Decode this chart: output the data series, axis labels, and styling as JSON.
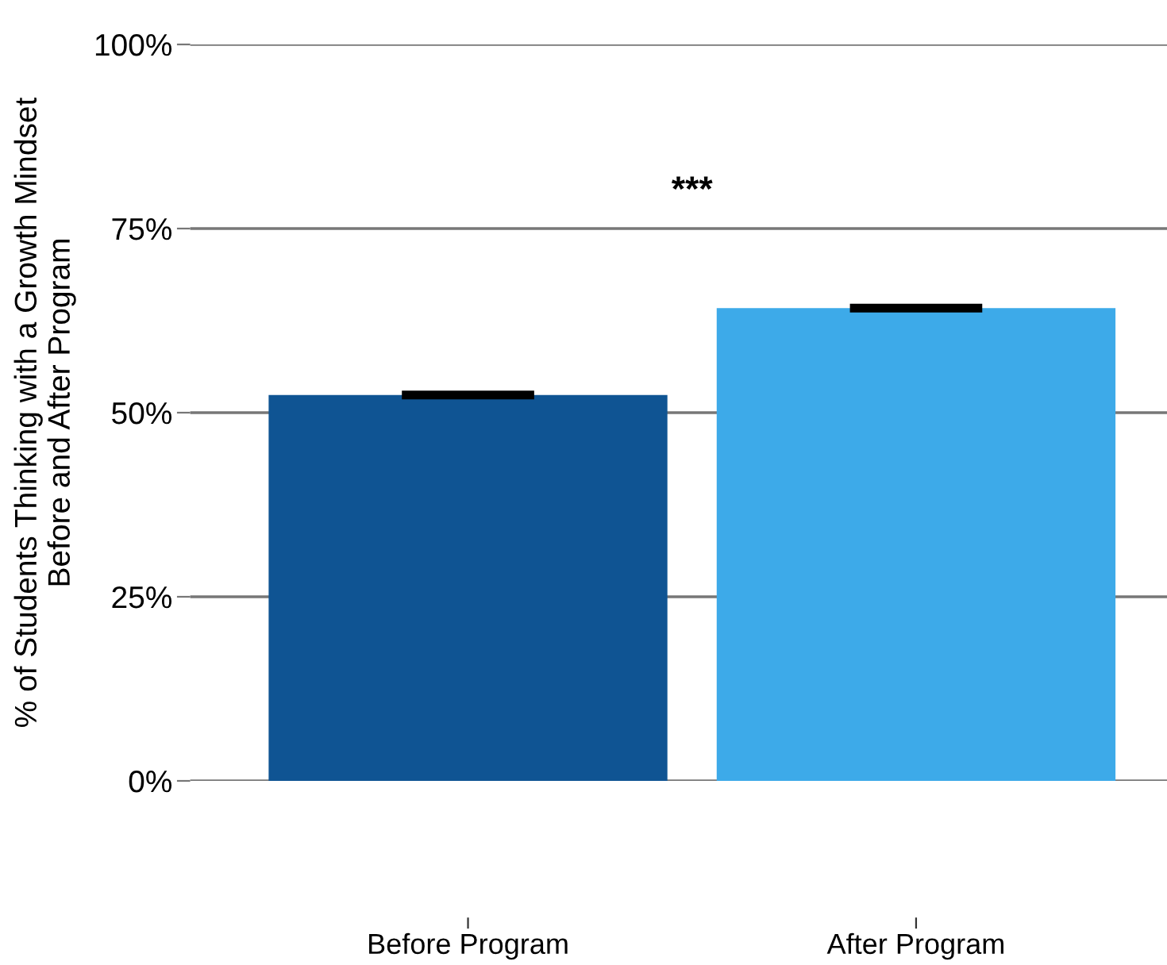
{
  "chart_data": {
    "type": "bar",
    "ylabel": "% of Students Thinking with a Growth Mindset\nBefore and After Program",
    "categories": [
      "Before Program",
      "After Program"
    ],
    "values": [
      52.4,
      64.2
    ],
    "errors": [
      0.6,
      0.6
    ],
    "colors": [
      "#0f5493",
      "#3daae9"
    ],
    "ylim": [
      0,
      100
    ],
    "yticks": [
      {
        "value": 0,
        "label": "0%"
      },
      {
        "value": 25,
        "label": "25%"
      },
      {
        "value": 50,
        "label": "50%"
      },
      {
        "value": 75,
        "label": "75%"
      },
      {
        "value": 100,
        "label": "100%"
      }
    ],
    "grid": "y",
    "annotations": [
      "***"
    ]
  }
}
